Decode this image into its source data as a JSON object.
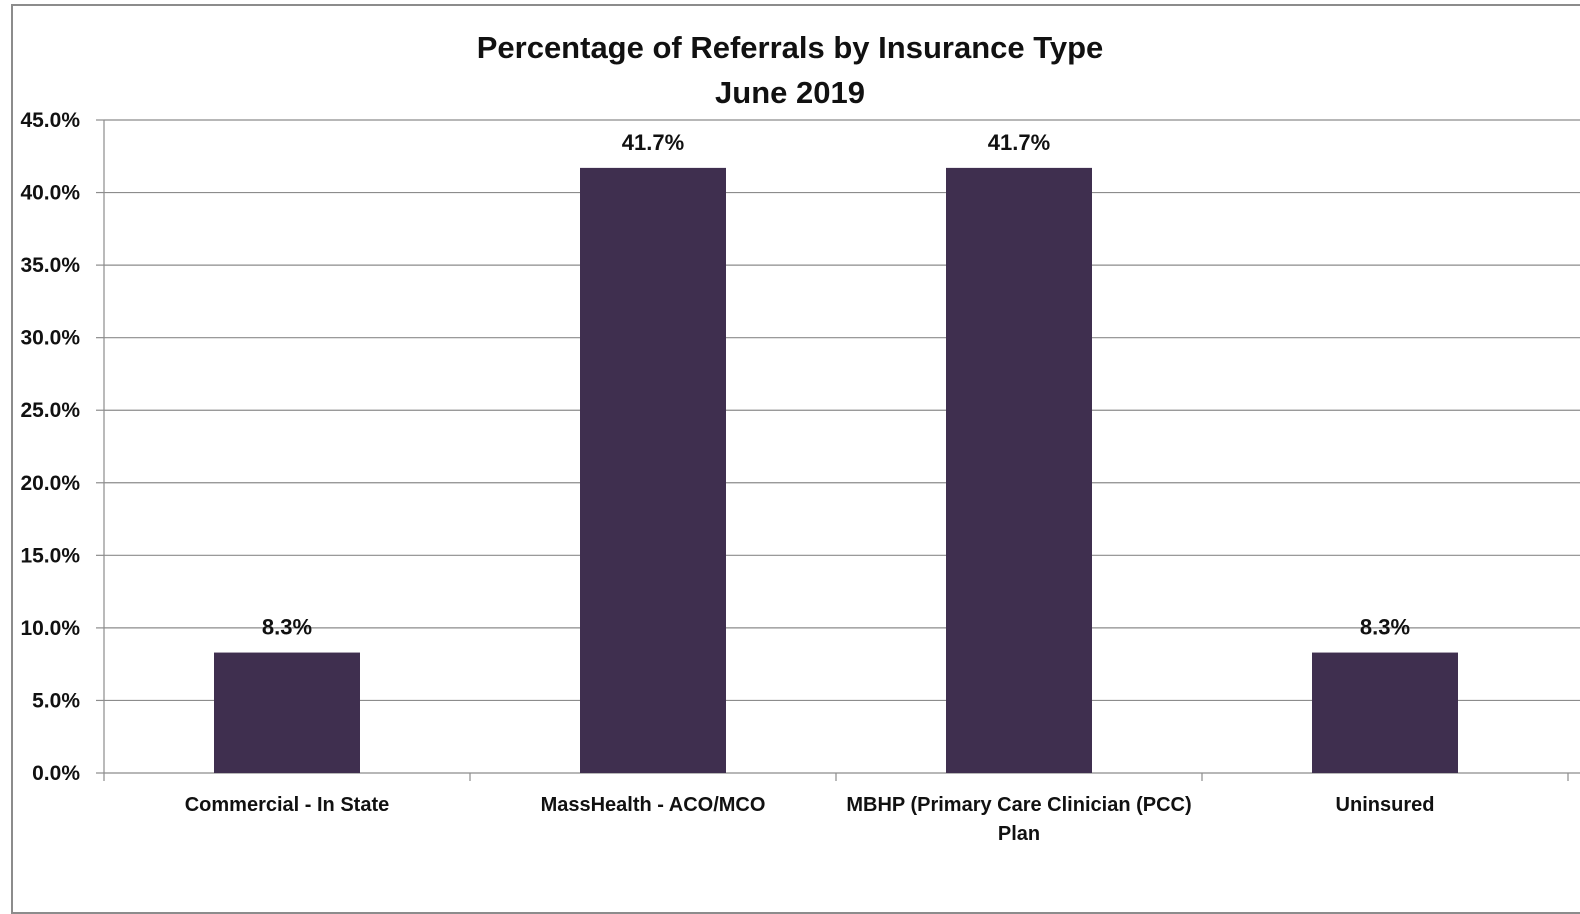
{
  "chart_data": {
    "type": "bar",
    "title": "Percentage of Referrals by Insurance Type",
    "subtitle": "June 2019",
    "categories": [
      "Commercial - In State",
      "MassHealth - ACO/MCO",
      "MBHP (Primary Care Clinician (PCC) Plan",
      "Uninsured"
    ],
    "category_label_lines": [
      [
        "Commercial - In State"
      ],
      [
        "MassHealth - ACO/MCO"
      ],
      [
        "MBHP (Primary Care Clinician (PCC)",
        "Plan"
      ],
      [
        "Uninsured"
      ]
    ],
    "values": [
      8.3,
      41.7,
      41.7,
      8.3
    ],
    "data_labels": [
      "8.3%",
      "41.7%",
      "41.7%",
      "8.3%"
    ],
    "ylim": [
      0,
      45
    ],
    "yticks": [
      0,
      5,
      10,
      15,
      20,
      25,
      30,
      35,
      40,
      45
    ],
    "ytick_labels": [
      "0.0%",
      "5.0%",
      "10.0%",
      "15.0%",
      "20.0%",
      "25.0%",
      "30.0%",
      "35.0%",
      "40.0%",
      "45.0%"
    ],
    "xlabel": "",
    "ylabel": "",
    "grid": true,
    "legend": "none",
    "colors": {
      "bar": "#3f2f4f",
      "grid": "#8c8c8c",
      "axis": "#8c8c8c"
    }
  }
}
